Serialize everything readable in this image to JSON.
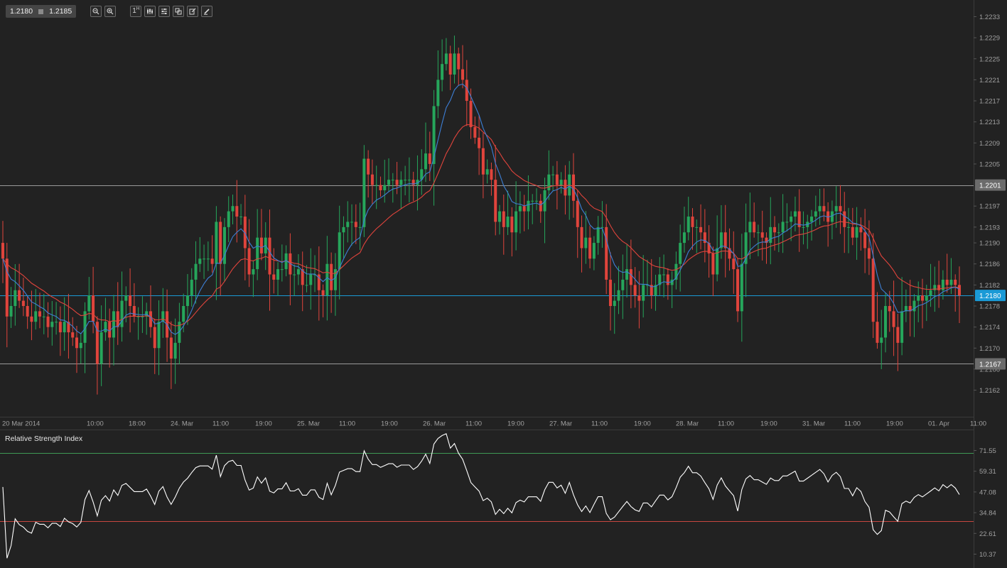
{
  "toolbar": {
    "bid": "1.2180",
    "ask": "1.2185",
    "timeframe_label": "1",
    "timeframe_sup": "H",
    "buttons": [
      "zoom-out-icon",
      "zoom-in-icon",
      "timeframe-icon",
      "chart-type-icon",
      "indicators-icon",
      "objects-icon",
      "draw-icon",
      "pencil-icon"
    ]
  },
  "colors": {
    "background": "#222222",
    "bull": "#26a65b",
    "bear": "#e0443c",
    "ma_fast": "#3d7fd6",
    "ma_slow": "#e0443c",
    "current_price": "#1a9ad6",
    "level": "#9a9a9a",
    "rsi_line": "#ffffff",
    "rsi_upper": "#3f9a55",
    "rsi_lower": "#c7473f"
  },
  "chart_data": [
    {
      "type": "candlestick",
      "title": "",
      "ylim": [
        1.2158,
        1.2235
      ],
      "y_ticks": [
        "1.2233",
        "1.2229",
        "1.2225",
        "1.2221",
        "1.2217",
        "1.2213",
        "1.2209",
        "1.2205",
        "1.2197",
        "1.2193",
        "1.2190",
        "1.2186",
        "1.2182",
        "1.2178",
        "1.2174",
        "1.2170",
        "1.2166",
        "1.2162"
      ],
      "x_labels": [
        "20 Mar 2014",
        "10:00",
        "18:00",
        "24. Mar",
        "11:00",
        "19:00",
        "25. Mar",
        "11:00",
        "19:00",
        "26. Mar",
        "11:00",
        "19:00",
        "27. Mar",
        "11:00",
        "19:00",
        "28. Mar",
        "11:00",
        "19:00",
        "31. Mar",
        "11:00",
        "19:00",
        "01. Apr",
        "11:00"
      ],
      "current_price": "1.2180",
      "levels": [
        "1.2201",
        "1.2167"
      ],
      "series": [
        {
          "kind": "candles",
          "close": [
            1.2187,
            1.2176,
            1.2178,
            1.2181,
            1.2179,
            1.2178,
            1.2176,
            1.2175,
            1.2177,
            1.2176,
            1.2176,
            1.2174,
            1.2175,
            1.2175,
            1.2173,
            1.2175,
            1.2173,
            1.2172,
            1.217,
            1.2171,
            1.2177,
            1.218,
            1.2175,
            1.2167,
            1.2173,
            1.2175,
            1.2172,
            1.2177,
            1.2174,
            1.2179,
            1.218,
            1.2178,
            1.2176,
            1.2176,
            1.2176,
            1.2177,
            1.2174,
            1.217,
            1.2175,
            1.2177,
            1.2172,
            1.2168,
            1.2171,
            1.2175,
            1.2178,
            1.218,
            1.2183,
            1.2186,
            1.2187,
            1.2187,
            1.2187,
            1.2186,
            1.2194,
            1.2186,
            1.2193,
            1.2196,
            1.2197,
            1.2195,
            1.2195,
            1.2189,
            1.2184,
            1.2185,
            1.2191,
            1.2188,
            1.2191,
            1.2184,
            1.2183,
            1.2185,
            1.2185,
            1.2188,
            1.2184,
            1.2184,
            1.2185,
            1.2182,
            1.2182,
            1.2184,
            1.2184,
            1.2181,
            1.218,
            1.2186,
            1.2181,
            1.2185,
            1.2192,
            1.2193,
            1.2194,
            1.2194,
            1.2193,
            1.2193,
            1.2206,
            1.2203,
            1.2201,
            1.2201,
            1.22,
            1.2201,
            1.2202,
            1.2202,
            1.2201,
            1.2202,
            1.2202,
            1.2202,
            1.2201,
            1.2202,
            1.2204,
            1.2207,
            1.2205,
            1.2216,
            1.2221,
            1.2224,
            1.2226,
            1.2222,
            1.2226,
            1.2223,
            1.2221,
            1.2217,
            1.2212,
            1.221,
            1.2208,
            1.2203,
            1.2204,
            1.2202,
            1.2194,
            1.2196,
            1.2193,
            1.2195,
            1.2192,
            1.2196,
            1.2197,
            1.2196,
            1.2198,
            1.2198,
            1.2198,
            1.2196,
            1.22,
            1.2203,
            1.2203,
            1.2201,
            1.2202,
            1.2199,
            1.2203,
            1.2198,
            1.2193,
            1.2189,
            1.2191,
            1.2187,
            1.219,
            1.2193,
            1.2193,
            1.2183,
            1.2178,
            1.2179,
            1.2181,
            1.2183,
            1.2185,
            1.2182,
            1.218,
            1.2179,
            1.2182,
            1.2182,
            1.218,
            1.2182,
            1.2184,
            1.2184,
            1.2182,
            1.2183,
            1.2186,
            1.219,
            1.2192,
            1.2195,
            1.2193,
            1.2193,
            1.2192,
            1.219,
            1.2188,
            1.2184,
            1.2189,
            1.2192,
            1.2189,
            1.2187,
            1.2185,
            1.2177,
            1.2186,
            1.2192,
            1.2194,
            1.2192,
            1.2192,
            1.2191,
            1.219,
            1.2193,
            1.2192,
            1.2192,
            1.2194,
            1.2194,
            1.2195,
            1.2196,
            1.2193,
            1.2193,
            1.2194,
            1.2195,
            1.2196,
            1.2197,
            1.2196,
            1.2194,
            1.2196,
            1.2197,
            1.2196,
            1.2193,
            1.2193,
            1.2191,
            1.2193,
            1.2192,
            1.2189,
            1.2187,
            1.2175,
            1.2171,
            1.2172,
            1.2178,
            1.2177,
            1.2174,
            1.2171,
            1.2177,
            1.2178,
            1.2177,
            1.2179,
            1.218,
            1.2179,
            1.218,
            1.2181,
            1.2182,
            1.2181,
            1.2183,
            1.2182,
            1.2183,
            1.2182,
            1.218
          ]
        },
        {
          "kind": "ma_fast",
          "name": ""
        },
        {
          "kind": "ma_slow",
          "name": ""
        }
      ]
    },
    {
      "type": "line",
      "title": "Relative Strength Index",
      "ylim": [
        5,
        85
      ],
      "y_ticks": [
        "71.55",
        "59.31",
        "47.08",
        "34.84",
        "22.61",
        "10.37"
      ],
      "upper_level": 70,
      "lower_level": 30,
      "series": [
        {
          "name": "",
          "values": []
        }
      ]
    }
  ]
}
